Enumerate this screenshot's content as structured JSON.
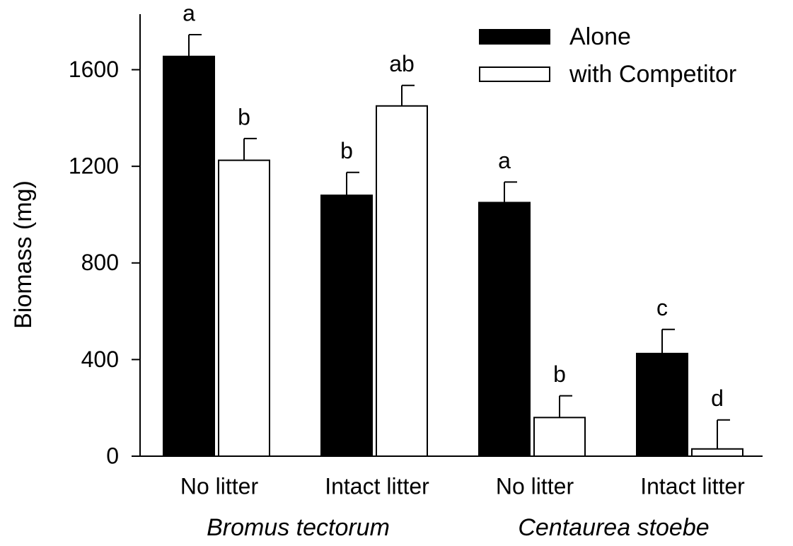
{
  "chart_data": {
    "type": "bar",
    "y_label": "Biomass (mg)",
    "categories": [
      "No litter",
      "Intact litter",
      "No litter",
      "Intact litter"
    ],
    "group_labels": [
      "Bromus tectorum",
      "Centaurea stoebe"
    ],
    "series": [
      {
        "name": "Alone",
        "color": "#000000",
        "values": [
          1655,
          1080,
          1050,
          425
        ],
        "errors": [
          90,
          95,
          85,
          100
        ],
        "letters": [
          "a",
          "b",
          "a",
          "c"
        ]
      },
      {
        "name": "with Competitor",
        "color": "#ffffff",
        "values": [
          1225,
          1450,
          160,
          30
        ],
        "errors": [
          90,
          85,
          90,
          120
        ],
        "letters": [
          "b",
          "ab",
          "b",
          "d"
        ]
      }
    ],
    "ylim": [
      0,
      1830
    ],
    "yticks": [
      0,
      400,
      800,
      1200,
      1600
    ],
    "legend": "top-right"
  }
}
